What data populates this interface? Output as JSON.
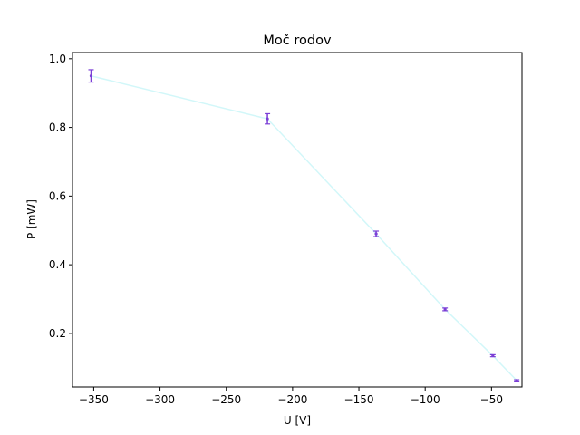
{
  "chart_data": {
    "type": "line",
    "title": "Moč rodov",
    "xlabel": "U [V]",
    "ylabel": "P [mW]",
    "xlim": [
      -366,
      -27
    ],
    "ylim": [
      0.044,
      1.018
    ],
    "x_ticks": [
      -350,
      -300,
      -250,
      -200,
      -150,
      -100,
      -50
    ],
    "y_ticks": [
      0.2,
      0.4,
      0.6,
      0.8,
      1.0
    ],
    "x_tick_labels": [
      "−350",
      "−300",
      "−250",
      "−200",
      "−150",
      "−100",
      "−50"
    ],
    "y_tick_labels": [
      "0.2",
      "0.4",
      "0.6",
      "0.8",
      "1.0"
    ],
    "grid": false,
    "series": [
      {
        "line_color": "#d2f7f9",
        "marker_color": "#7b3fd6",
        "points": [
          {
            "x": -352,
            "y": 0.95,
            "err": 0.018
          },
          {
            "x": -219,
            "y": 0.825,
            "err": 0.015
          },
          {
            "x": -137,
            "y": 0.49,
            "err": 0.008
          },
          {
            "x": -85,
            "y": 0.27,
            "err": 0.004
          },
          {
            "x": -49,
            "y": 0.135,
            "err": 0.003
          },
          {
            "x": -31,
            "y": 0.063,
            "err": 0.002
          }
        ]
      }
    ]
  }
}
